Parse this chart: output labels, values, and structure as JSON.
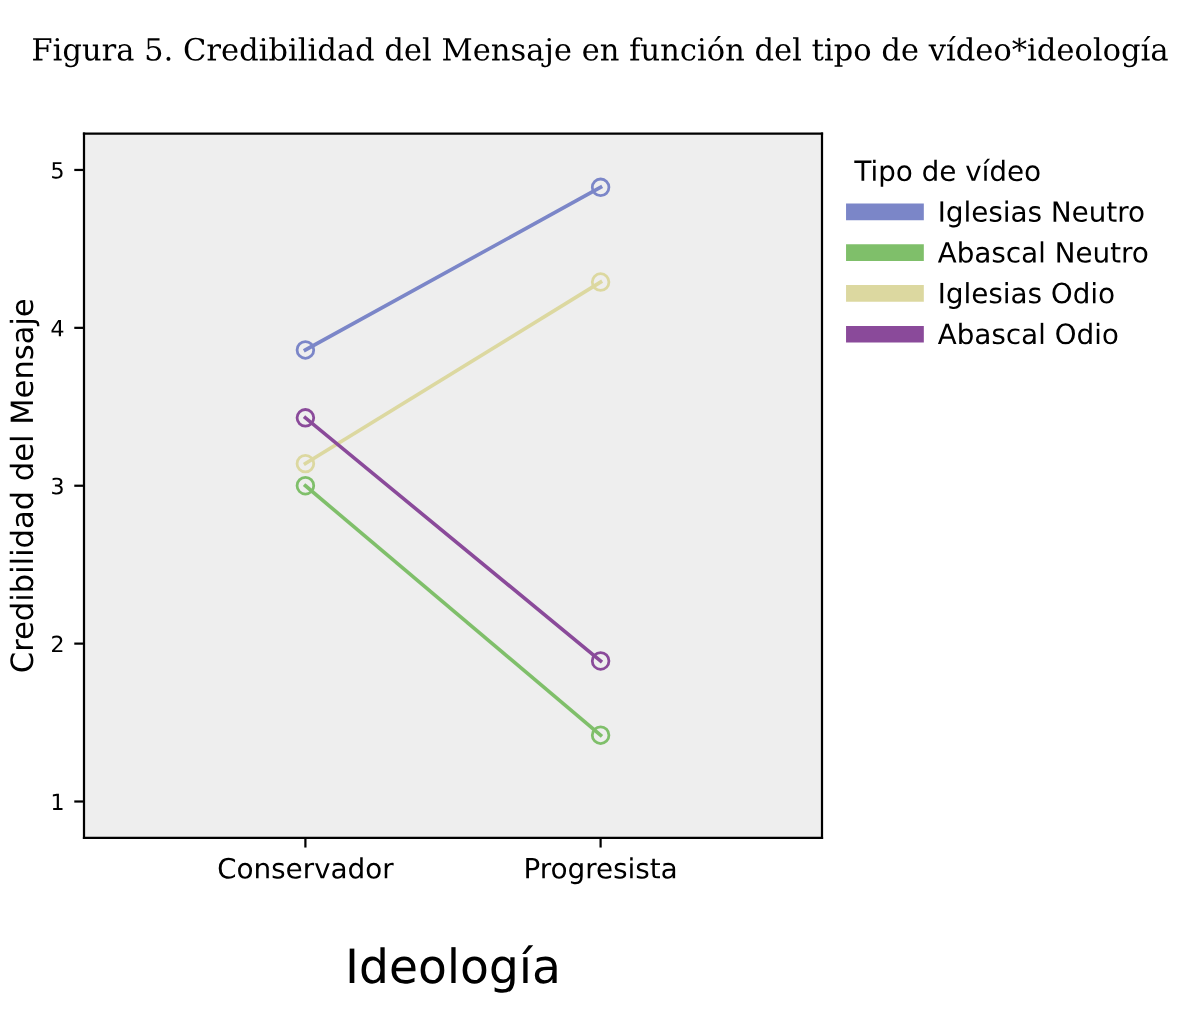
{
  "chart_data": {
    "type": "line",
    "title": "Figura 5. Credibilidad del Mensaje en función del tipo de vídeo*ideología",
    "xlabel": "Ideología",
    "ylabel": "Credibilidad del Mensaje",
    "legend_title": "Tipo de vídeo",
    "categories": [
      "Conservador",
      "Progresista"
    ],
    "series": [
      {
        "name": "Iglesias Neutro",
        "color": "#7b86c8",
        "values": [
          3.86,
          4.89
        ]
      },
      {
        "name": "Abascal Neutro",
        "color": "#7fbf6a",
        "values": [
          3.0,
          1.42
        ]
      },
      {
        "name": "Iglesias Odio",
        "color": "#dcd8a0",
        "values": [
          3.14,
          4.29
        ]
      },
      {
        "name": "Abascal Odio",
        "color": "#8a4a9a",
        "values": [
          3.43,
          1.89
        ]
      }
    ],
    "ylim": [
      0.77,
      5.23
    ],
    "yticks": [
      1,
      2,
      3,
      4,
      5
    ],
    "marker": "circle",
    "legend": "right",
    "grid": false
  }
}
